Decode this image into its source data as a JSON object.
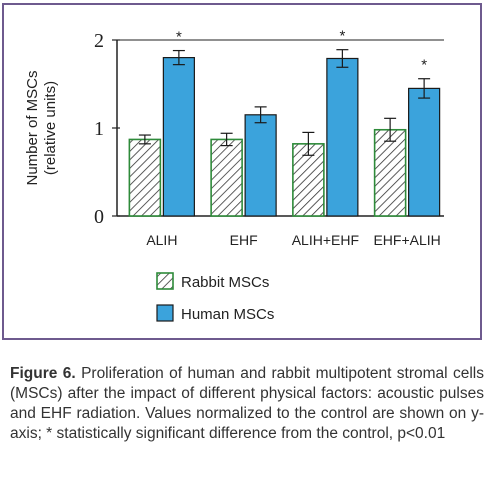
{
  "figure": {
    "label": "Figure 6.",
    "caption": "Proliferation of human and rabbit multipotent stromal cells (MSCs) after the impact of different physical factors: acoustic pulses and EHF radiation. Values normalized to the control are shown on y-axis; * statistically significant difference from the control, p<0.01"
  },
  "chart_data": {
    "type": "bar",
    "title": "",
    "xlabel": "",
    "ylabel_lines": [
      "Number of MSCs",
      "(relative units)"
    ],
    "categories": [
      "ALIH",
      "EHF",
      "ALIH+EHF",
      "EHF+ALIH"
    ],
    "yticks": [
      "0",
      "1",
      "2"
    ],
    "ylim": [
      0,
      2
    ],
    "grid": false,
    "legend_position": "bottom-left",
    "series": [
      {
        "name": "Rabbit MSCs",
        "values": [
          0.87,
          0.87,
          0.82,
          0.98
        ],
        "errors": [
          0.05,
          0.07,
          0.13,
          0.13
        ],
        "significant": [
          false,
          false,
          false,
          false
        ],
        "fill": "hatched",
        "color": "#2e8b3a"
      },
      {
        "name": "Human MSCs",
        "values": [
          1.8,
          1.15,
          1.79,
          1.45
        ],
        "errors": [
          0.08,
          0.09,
          0.1,
          0.11
        ],
        "significant": [
          true,
          false,
          true,
          true
        ],
        "fill": "solid",
        "color": "#3ba3dc"
      }
    ],
    "significance_marker": "*"
  },
  "colors": {
    "frame": "#6e5a8e",
    "axis": "#222222",
    "rabbit_border": "#2e8b3a",
    "human_fill": "#3ba3dc"
  }
}
